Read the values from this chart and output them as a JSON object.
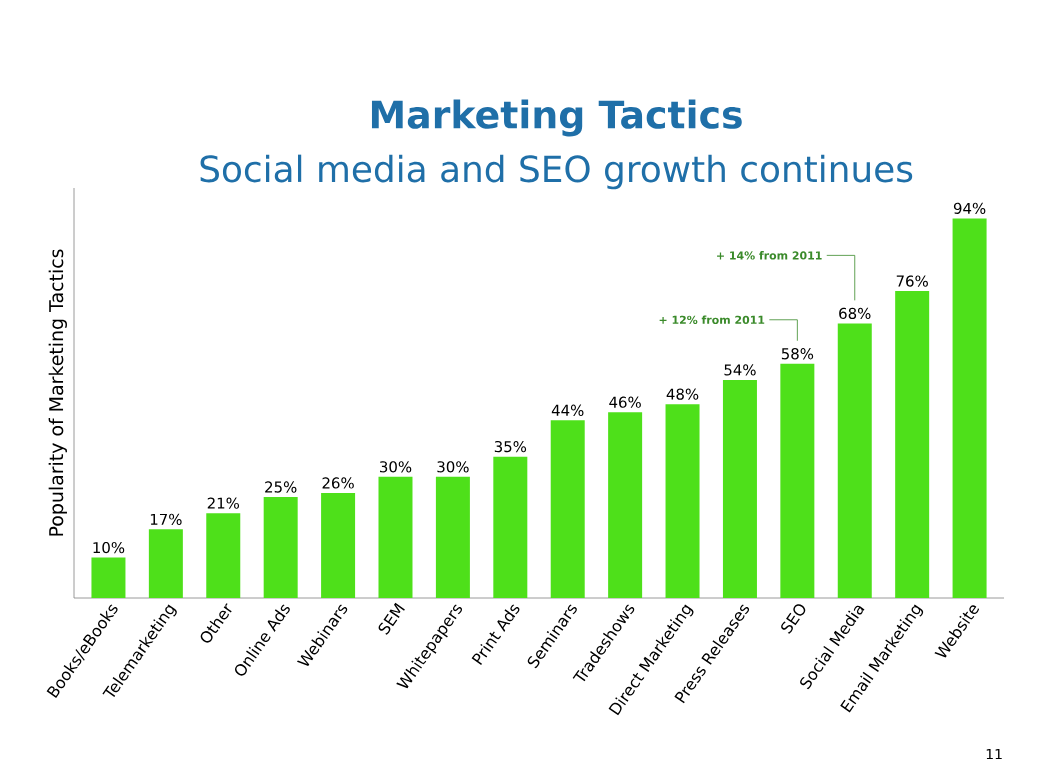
{
  "chart_data": {
    "type": "bar",
    "title": "Marketing Tactics",
    "subtitle": "Social media and SEO growth continues",
    "ylabel": "Popularity of Marketing Tactics",
    "categories": [
      "Books/eBooks",
      "Telemarketing",
      "Other",
      "Online Ads",
      "Webinars",
      "SEM",
      "Whitepapers",
      "Print Ads",
      "Seminars",
      "Tradeshows",
      "Direct Marketing",
      "Press Releases",
      "SEO",
      "Social Media",
      "Email Marketing",
      "Website"
    ],
    "values": [
      10,
      17,
      21,
      25,
      26,
      30,
      30,
      35,
      44,
      46,
      48,
      54,
      58,
      68,
      76,
      94
    ],
    "value_labels": [
      "10%",
      "17%",
      "21%",
      "25%",
      "26%",
      "30%",
      "30%",
      "35%",
      "44%",
      "46%",
      "48%",
      "54%",
      "58%",
      "68%",
      "76%",
      "94%"
    ],
    "color": "#4ee01a",
    "annotations": [
      "+ 12% from 2011",
      "+ 14% from 2011",
      "11"
    ]
  }
}
